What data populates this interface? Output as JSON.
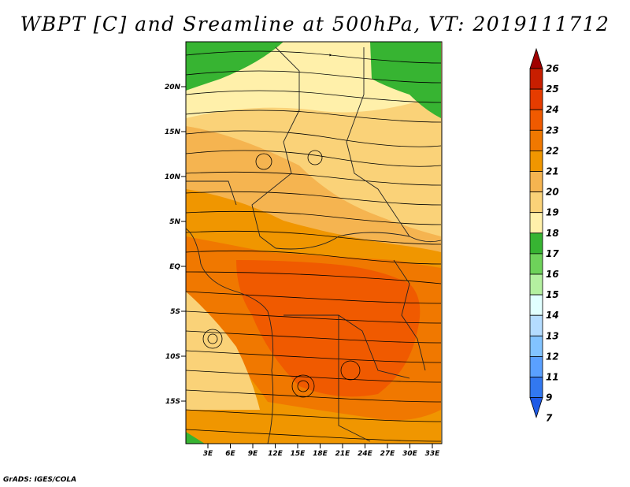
{
  "title": "WBPT [C] and Sreamline at 500hPa, VT: 2019111712",
  "footer": "GrADS: IGES/COLA",
  "map": {
    "lat_labels": [
      "20N",
      "15N",
      "10N",
      "5N",
      "EQ",
      "5S",
      "10S",
      "15S"
    ],
    "lon_labels": [
      "3E",
      "6E",
      "9E",
      "12E",
      "15E",
      "18E",
      "21E",
      "24E",
      "27E",
      "30E",
      "33E"
    ]
  },
  "colorbar": {
    "labels": [
      "26",
      "25",
      "24",
      "23",
      "22",
      "21",
      "20",
      "19",
      "18",
      "17",
      "16",
      "15",
      "14",
      "13",
      "12",
      "11",
      "9",
      "7"
    ],
    "colors": [
      "#a00000",
      "#c81e00",
      "#e63c00",
      "#f05a00",
      "#f07800",
      "#f09600",
      "#f5b450",
      "#fad278",
      "#fff0aa",
      "#37b432",
      "#6ed25a",
      "#b4f0a0",
      "#e1ffff",
      "#b4dcff",
      "#82c3ff",
      "#5aa0ff",
      "#3278f0",
      "#1e5ae6"
    ]
  }
}
